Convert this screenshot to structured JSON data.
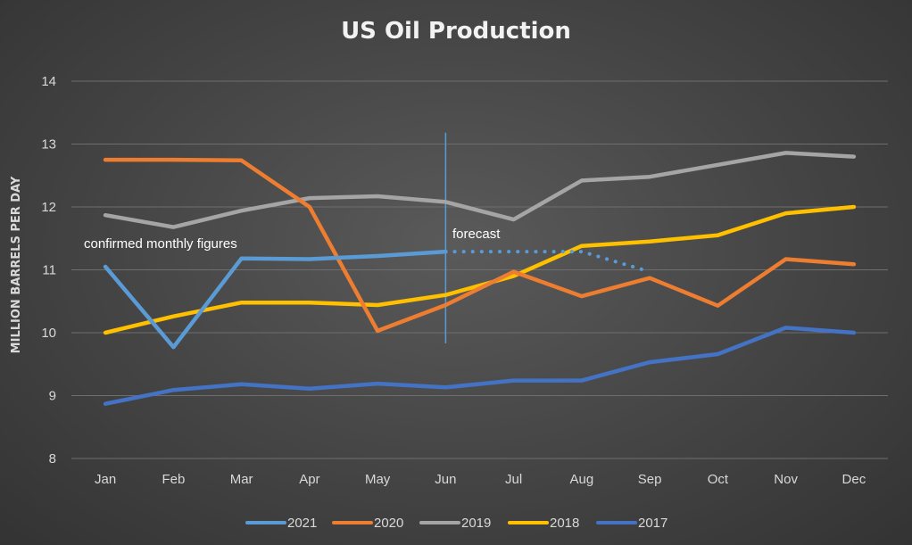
{
  "chart_data": {
    "type": "line",
    "title": "US Oil Production",
    "xlabel": "",
    "ylabel": "MILLION BARRELS PER DAY",
    "ylim": [
      8,
      14
    ],
    "yticks": [
      8,
      9,
      10,
      11,
      12,
      13,
      14
    ],
    "grid": true,
    "legend_position": "bottom",
    "categories": [
      "Jan",
      "Feb",
      "Mar",
      "Apr",
      "May",
      "Jun",
      "Jul",
      "Aug",
      "Sep",
      "Oct",
      "Nov",
      "Dec"
    ],
    "series": [
      {
        "name": "2021",
        "color": "#5b9bd5",
        "values": [
          11.05,
          9.77,
          11.18,
          11.17,
          11.22,
          11.29,
          null,
          null,
          null,
          null,
          null,
          null
        ]
      },
      {
        "name": "2020",
        "color": "#ed7d31",
        "values": [
          12.75,
          12.75,
          12.74,
          12.0,
          10.03,
          10.44,
          10.97,
          10.58,
          10.87,
          10.43,
          11.17,
          11.09
        ]
      },
      {
        "name": "2019",
        "color": "#a5a5a5",
        "values": [
          11.87,
          11.68,
          11.94,
          12.14,
          12.17,
          12.08,
          11.8,
          12.42,
          12.48,
          12.67,
          12.86,
          12.8
        ]
      },
      {
        "name": "2018",
        "color": "#ffc000",
        "values": [
          10.0,
          10.26,
          10.48,
          10.48,
          10.44,
          10.6,
          10.9,
          11.38,
          11.45,
          11.55,
          11.9,
          12.0
        ]
      },
      {
        "name": "2017",
        "color": "#4472c4",
        "values": [
          8.87,
          9.09,
          9.18,
          9.11,
          9.19,
          9.13,
          9.24,
          9.24,
          9.53,
          9.66,
          10.08,
          10.0
        ]
      }
    ],
    "forecast_series": {
      "base": "2021",
      "color": "#5b9bd5",
      "style": "dotted",
      "categories": [
        "Jun",
        "Jul",
        "Aug",
        "Sep"
      ],
      "values": [
        11.29,
        11.29,
        11.29,
        10.97
      ]
    },
    "annotations": {
      "confirmed_label": "confirmed monthly figures",
      "forecast_label": "forecast",
      "divider_category": "Jun",
      "divider_color": "#5b9bd5",
      "divider_range": [
        9.83,
        13.18
      ]
    }
  }
}
